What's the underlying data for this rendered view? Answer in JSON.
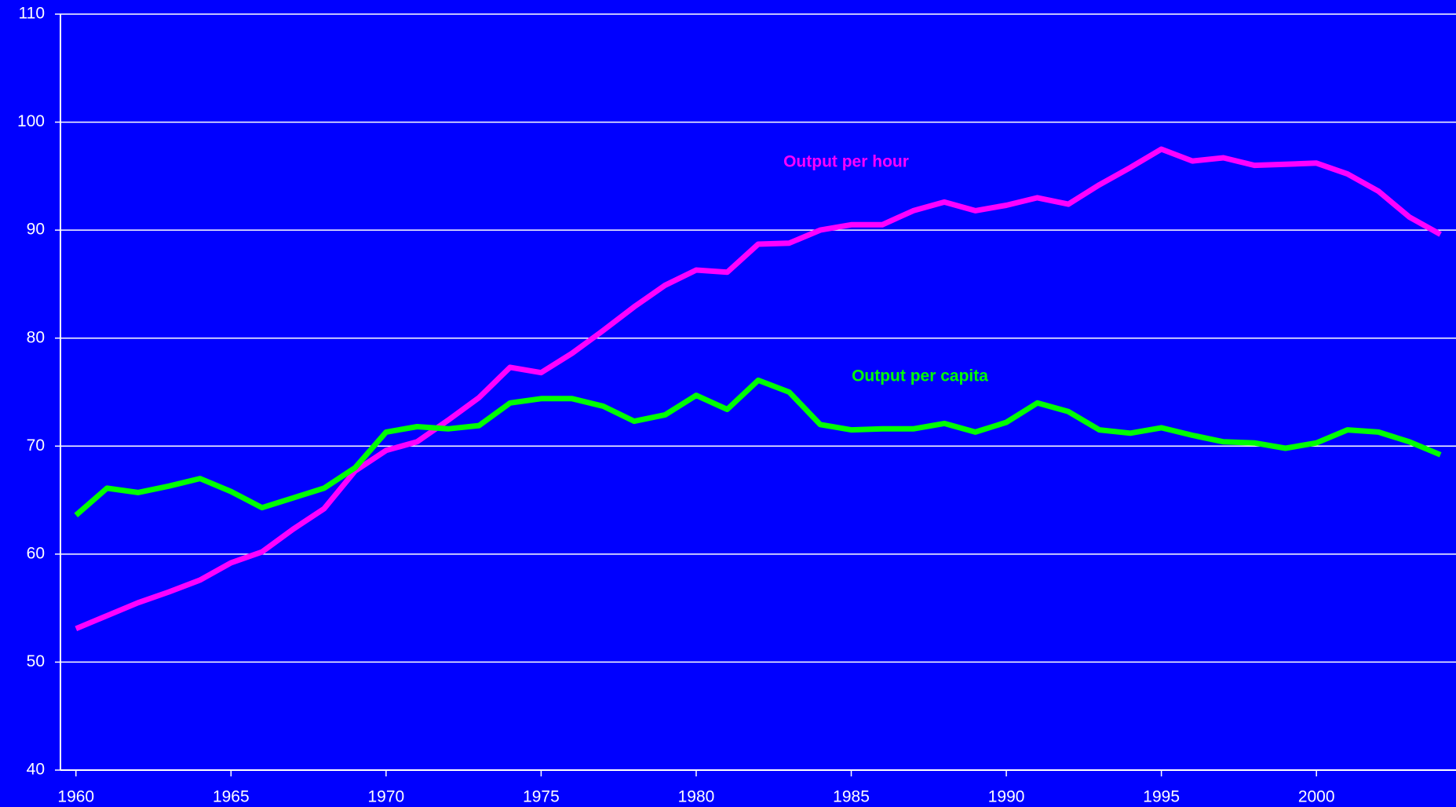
{
  "chart_data": {
    "type": "line",
    "x": [
      1960,
      1961,
      1962,
      1963,
      1964,
      1965,
      1966,
      1967,
      1968,
      1969,
      1970,
      1971,
      1972,
      1973,
      1974,
      1975,
      1976,
      1977,
      1978,
      1979,
      1980,
      1981,
      1982,
      1983,
      1984,
      1985,
      1986,
      1987,
      1988,
      1989,
      1990,
      1991,
      1992,
      1993,
      1994,
      1995,
      1996,
      1997,
      1998,
      1999,
      2000,
      2001,
      2002,
      2003,
      2004
    ],
    "series": [
      {
        "name": "Output per hour",
        "color": "#ff00ff",
        "values": [
          53.1,
          54.3,
          55.5,
          56.5,
          57.6,
          59.2,
          60.2,
          62.3,
          64.2,
          67.7,
          69.6,
          70.4,
          72.4,
          74.5,
          77.3,
          76.8,
          78.6,
          80.7,
          82.9,
          84.9,
          86.3,
          86.1,
          88.7,
          88.8,
          90.0,
          90.5,
          90.5,
          91.8,
          92.6,
          91.8,
          92.3,
          93.0,
          92.4,
          94.2,
          95.8,
          97.5,
          96.4,
          96.7,
          96.0,
          96.1,
          96.2,
          95.2,
          93.6,
          91.2,
          89.6
        ]
      },
      {
        "name": "Output per capita",
        "color": "#00ff00",
        "values": [
          63.6,
          66.1,
          65.7,
          66.3,
          67.0,
          65.8,
          64.3,
          65.2,
          66.1,
          68.0,
          71.3,
          71.8,
          71.6,
          71.9,
          74.0,
          74.4,
          74.4,
          73.7,
          72.3,
          72.9,
          74.7,
          73.4,
          76.1,
          75.0,
          72.0,
          71.5,
          71.6,
          71.6,
          72.1,
          71.3,
          72.2,
          74.0,
          73.2,
          71.5,
          71.2,
          71.7,
          71.0,
          70.4,
          70.3,
          69.8,
          70.3,
          71.5,
          71.3,
          70.4,
          69.2
        ]
      }
    ],
    "xlim": [
      1959.5,
      2004.5
    ],
    "xticks": [
      1960,
      1965,
      1970,
      1975,
      1980,
      1985,
      1990,
      1995,
      2000
    ],
    "ylim": [
      40,
      110
    ],
    "yticks": [
      40,
      50,
      60,
      70,
      80,
      90,
      100,
      110
    ],
    "grid": true,
    "background": "#0000ff"
  }
}
